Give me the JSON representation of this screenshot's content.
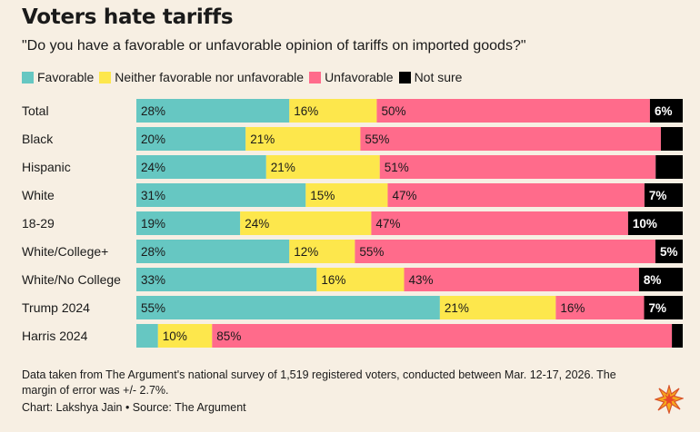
{
  "title": "Voters hate tariffs",
  "subtitle": "\"Do you have a favorable or unfavorable opinion of tariffs on imported goods?\"",
  "legend": [
    {
      "label": "Favorable",
      "color": "#66c7c2"
    },
    {
      "label": "Neither favorable nor unfavorable",
      "color": "#fde74c"
    },
    {
      "label": "Unfavorable",
      "color": "#ff6b8b"
    },
    {
      "label": "Not sure",
      "color": "#000000"
    }
  ],
  "chart_data": {
    "type": "bar",
    "orientation": "horizontal-stacked-100",
    "title": "Voters hate tariffs",
    "categories": [
      "Total",
      "Black",
      "Hispanic",
      "White",
      "18-29",
      "White/College+",
      "White/No College",
      "Trump 2024",
      "Harris 2024"
    ],
    "series": [
      {
        "name": "Favorable",
        "color": "#66c7c2",
        "values": [
          28,
          20,
          24,
          31,
          19,
          28,
          33,
          55,
          4
        ],
        "labels": [
          "28%",
          "20%",
          "24%",
          "31%",
          "19%",
          "28%",
          "33%",
          "55%",
          ""
        ]
      },
      {
        "name": "Neither favorable nor unfavorable",
        "color": "#fde74c",
        "values": [
          16,
          21,
          21,
          15,
          24,
          12,
          16,
          21,
          10
        ],
        "labels": [
          "16%",
          "21%",
          "21%",
          "15%",
          "24%",
          "12%",
          "16%",
          "21%",
          "10%"
        ]
      },
      {
        "name": "Unfavorable",
        "color": "#ff6b8b",
        "values": [
          50,
          55,
          51,
          47,
          47,
          55,
          43,
          16,
          85
        ],
        "labels": [
          "50%",
          "55%",
          "51%",
          "47%",
          "47%",
          "55%",
          "43%",
          "16%",
          "85%"
        ]
      },
      {
        "name": "Not sure",
        "color": "#000000",
        "values": [
          6,
          4,
          5,
          7,
          10,
          5,
          8,
          7,
          2
        ],
        "labels": [
          "6%",
          "",
          "",
          "7%",
          "10%",
          "5%",
          "8%",
          "7%",
          ""
        ]
      }
    ],
    "xlim": [
      0,
      100
    ],
    "grid": false,
    "legend_position": "top-left"
  },
  "footnote": "Data taken from The Argument's national survey of 1,519 registered voters, conducted between Mar. 12-17, 2026. The margin of error was +/- 2.7%.",
  "credit": "Chart: Lakshya Jain • Source: The Argument",
  "logo_icon": "starburst-icon"
}
